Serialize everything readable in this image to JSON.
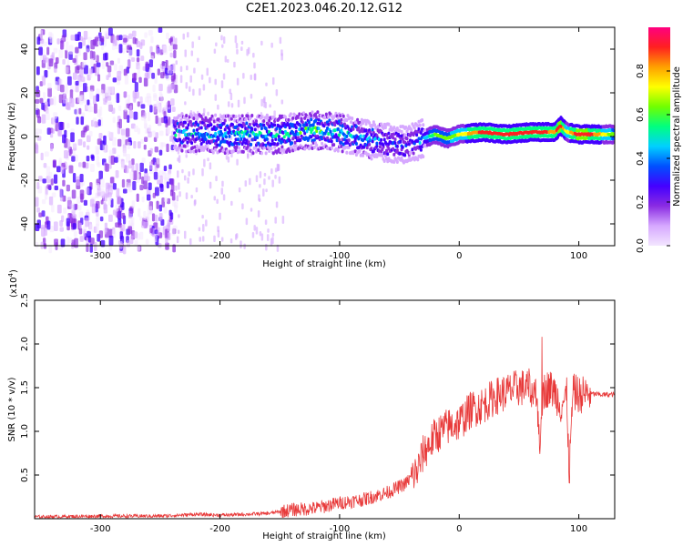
{
  "title": "C2E1.2023.046.20.12.G12",
  "colors": {
    "snr_line": "#e83a3a",
    "colormap": [
      "#f3e6ff",
      "#d6a8ff",
      "#8a2be2",
      "#4400ff",
      "#0050ff",
      "#00d0ff",
      "#00ff80",
      "#70ff00",
      "#ffff00",
      "#ffa000",
      "#ff2020",
      "#ff0080"
    ]
  },
  "chart_data": [
    {
      "type": "heatmap",
      "title": "C2E1.2023.046.20.12.G12",
      "xlabel": "Height of straight line (km)",
      "ylabel": "Frequency (Hz)",
      "xlim": [
        -355,
        130
      ],
      "ylim": [
        -50,
        50
      ],
      "x_ticks": [
        -300,
        -200,
        -100,
        0,
        100
      ],
      "y_ticks": [
        -40,
        -20,
        0,
        20,
        40
      ],
      "colorbar": {
        "label": "Normalized spectral amplitude",
        "range": [
          0.0,
          1.0
        ],
        "ticks": [
          "0.0",
          "0.2",
          "0.4",
          "0.6",
          "0.8"
        ]
      },
      "noise_band": {
        "x_range": [
          -355,
          -238
        ],
        "y_range": [
          -50,
          50
        ],
        "amplitude": 0.3
      },
      "ridge": {
        "x": [
          -238,
          -200,
          -150,
          -120,
          -100,
          -80,
          -60,
          -45,
          -35,
          -20,
          -10,
          0,
          20,
          40,
          60,
          80,
          85,
          90,
          100,
          110,
          130
        ],
        "y": [
          2,
          1,
          1,
          3,
          2,
          -1,
          -3,
          -4,
          -2,
          1,
          -1,
          1,
          2,
          1,
          2,
          2,
          5,
          2,
          1,
          1,
          1
        ],
        "amplitude": [
          0.4,
          0.45,
          0.45,
          0.5,
          0.45,
          0.4,
          0.35,
          0.3,
          0.3,
          0.6,
          0.6,
          0.7,
          0.9,
          0.9,
          0.9,
          0.85,
          0.95,
          0.7,
          0.95,
          0.9,
          0.6
        ]
      }
    },
    {
      "type": "line",
      "xlabel": "Height of straight line (km)",
      "ylabel": "SNR (10 * v/v)",
      "y_multiplier": "(x10",
      "y_multiplier_exp": "4",
      "y_multiplier_close": ")",
      "xlim": [
        -355,
        130
      ],
      "ylim": [
        0,
        2.5
      ],
      "x_ticks": [
        -300,
        -200,
        -100,
        0,
        100
      ],
      "y_ticks": [
        "0.5",
        "1.0",
        "1.5",
        "2.0",
        "2.5"
      ],
      "series": [
        {
          "x": [
            -355,
            -300,
            -250,
            -220,
            -200,
            -160,
            -140,
            -120,
            -100,
            -80,
            -60,
            -45,
            -35,
            -30,
            -20,
            -10,
            0,
            10,
            20,
            30,
            40,
            50,
            60,
            65,
            68,
            70,
            75,
            80,
            85,
            90,
            92,
            95,
            100,
            110,
            120,
            130
          ],
          "y": [
            0.02,
            0.03,
            0.03,
            0.05,
            0.04,
            0.06,
            0.1,
            0.12,
            0.18,
            0.22,
            0.3,
            0.4,
            0.55,
            0.75,
            0.95,
            1.05,
            1.1,
            1.25,
            1.3,
            1.4,
            1.45,
            1.5,
            1.5,
            1.4,
            0.8,
            1.45,
            1.5,
            1.45,
            1.3,
            1.4,
            0.5,
            1.45,
            1.42,
            1.43,
            1.42,
            1.42
          ]
        }
      ]
    }
  ]
}
